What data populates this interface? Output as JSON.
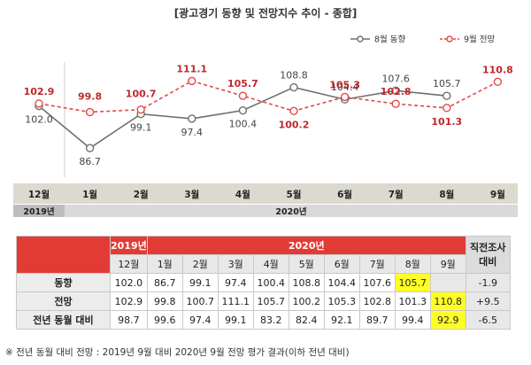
{
  "title": "[광고경기 동향 및 전망지수 추이 - 종합]",
  "chart_data": {
    "type": "line",
    "categories": [
      "12월",
      "1월",
      "2월",
      "3월",
      "4월",
      "5월",
      "6월",
      "7월",
      "8월",
      "9월"
    ],
    "year_labels": [
      "2019년",
      "2020년"
    ],
    "series": [
      {
        "name": "8월 동향",
        "color": "#707070",
        "dashed": false,
        "values": [
          102.0,
          86.7,
          99.1,
          97.4,
          100.4,
          108.8,
          104.4,
          107.6,
          105.7,
          null
        ],
        "labels": [
          "102.0",
          "86.7",
          "99.1",
          "97.4",
          "100.4",
          "108.8",
          "104.4",
          "107.6",
          "105.7",
          ""
        ]
      },
      {
        "name": "9월 전망",
        "color": "#e04a46",
        "dashed": true,
        "values": [
          102.9,
          99.8,
          100.7,
          111.1,
          105.7,
          100.2,
          105.3,
          102.8,
          101.3,
          110.8
        ],
        "labels": [
          "102.9",
          "99.8",
          "100.7",
          "111.1",
          "105.7",
          "100.2",
          "105.3",
          "102.8",
          "101.3",
          "110.8"
        ]
      }
    ],
    "ylim": [
      80,
      118
    ],
    "legend_position": "top-right"
  },
  "table": {
    "year_2019": "2019년",
    "year_2020": "2020년",
    "last_col_header": "직전조사 대비",
    "months": [
      "12월",
      "1월",
      "2월",
      "3월",
      "4월",
      "5월",
      "6월",
      "7월",
      "8월",
      "9월"
    ],
    "rows": [
      {
        "label": "동향",
        "cells": [
          "102.0",
          "86.7",
          "99.1",
          "97.4",
          "100.4",
          "108.8",
          "104.4",
          "107.6",
          "105.7",
          ""
        ],
        "diff": "-1.9",
        "highlight": 8
      },
      {
        "label": "전망",
        "cells": [
          "102.9",
          "99.8",
          "100.7",
          "111.1",
          "105.7",
          "100.2",
          "105.3",
          "102.8",
          "101.3",
          "110.8"
        ],
        "diff": "+9.5",
        "highlight": 9
      },
      {
        "label": "전년 동월 대비",
        "cells": [
          "98.7",
          "99.6",
          "97.4",
          "99.1",
          "83.2",
          "82.4",
          "92.1",
          "89.7",
          "99.4",
          "92.9"
        ],
        "diff": "-6.5",
        "highlight": 9
      }
    ],
    "highlight_color": "#ffff26"
  },
  "note": "※ 전년 동월 대비 전망 : 2019년 9월 대비 2020년 9월 전망 평가 결과(이하 전년 대비)"
}
